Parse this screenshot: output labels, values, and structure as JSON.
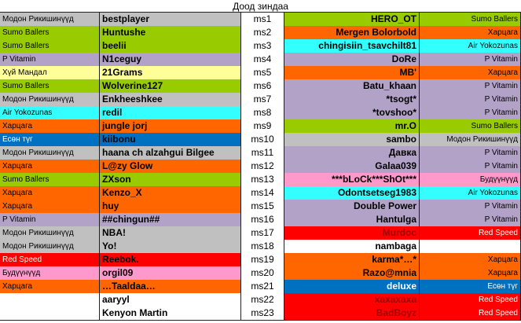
{
  "title": "Доод зиндаа",
  "colors": {
    "Модон Рикишинүүд": "#c0c0c0",
    "Sumo Ballers": "#99cc00",
    "P Vitamin": "#b3a2c7",
    "Хүй Мандал": "#ffff99",
    "Air Yokozunas": "#33ffff",
    "Харцага": "#ff6600",
    "Есөн түг": "#0070c0",
    "Red Speed": "#ff0000",
    "Будүүнүүд": "#ff99cc",
    "none": "#ffffff"
  },
  "rows": [
    {
      "lt": "Модон Рикишинүүд",
      "lp": "bestplayer",
      "ms": "ms1",
      "rp": "HERO_OT",
      "rt": "Sumo Ballers",
      "lpc": "#c0c0c0",
      "rpc": "#99cc00"
    },
    {
      "lt": "Sumo Ballers",
      "lp": "Huntushe",
      "ms": "ms2",
      "rp": "Mergen Bolorbold",
      "rt": "Харцага",
      "lpc": "#99cc00",
      "rpc": "#ff6600"
    },
    {
      "lt": "Sumo Ballers",
      "lp": "beelii",
      "ms": "ms3",
      "rp": "chingisiin_tsavchilt81",
      "rt": "Air Yokozunas",
      "lpc": "#99cc00",
      "rpc": "#33ffff"
    },
    {
      "lt": "P Vitamin",
      "lp": "N1ceguy",
      "ms": "ms4",
      "rp": "DoRe",
      "rt": "P Vitamin",
      "lpc": "#b3a2c7",
      "rpc": "#b3a2c7"
    },
    {
      "lt": "Хүй Мандал",
      "lp": "21Grams",
      "ms": "ms5",
      "rp": "MB'",
      "rt": "Харцага",
      "lpc": "#ffff99",
      "rpc": "#ff6600"
    },
    {
      "lt": "Sumo Ballers",
      "lp": "Wolverine127",
      "ms": "ms6",
      "rp": "Batu_khaan",
      "rt": "P Vitamin",
      "lpc": "#99cc00",
      "rpc": "#b3a2c7"
    },
    {
      "lt": "Модон Рикишинүүд",
      "lp": "Enkheeshkee",
      "ms": "ms7",
      "rp": "*tsogt*",
      "rt": "P Vitamin",
      "lpc": "#c0c0c0",
      "rpc": "#b3a2c7"
    },
    {
      "lt": "Air Yokozunas",
      "lp": "redil",
      "ms": "ms8",
      "rp": "*tovshoo*",
      "rt": "P Vitamin",
      "lpc": "#33ffff",
      "rpc": "#b3a2c7"
    },
    {
      "lt": "Харцага",
      "lp": "jungle jorj",
      "ms": "ms9",
      "rp": "mr.O",
      "rt": "Sumo Ballers",
      "lpc": "#ff6600",
      "rpc": "#99cc00"
    },
    {
      "lt": "Есөн түг",
      "lp": "kiibonu",
      "ms": "ms10",
      "rp": "sambo",
      "rt": "Модон Рикишинүүд",
      "lpc": "#0070c0",
      "rpc": "#c0c0c0"
    },
    {
      "lt": "Модон Рикишинүүд",
      "lp": "haana ch alzahgui Bilgee",
      "ms": "ms11",
      "rp": "Давка",
      "rt": "P Vitamin",
      "lpc": "#c0c0c0",
      "rpc": "#b3a2c7"
    },
    {
      "lt": "Харцага",
      "lp": "L@zy Glow",
      "ms": "ms12",
      "rp": "Galaa039",
      "rt": "P Vitamin",
      "lpc": "#ff6600",
      "rpc": "#b3a2c7"
    },
    {
      "lt": "Sumo Ballers",
      "lp": "ZXson",
      "ms": "ms13",
      "rp": "***bLoCk***ShOt***",
      "rt": "Будүүнүүд",
      "lpc": "#99cc00",
      "rpc": "#ff99cc"
    },
    {
      "lt": "Харцага",
      "lp": "Kenzo_X",
      "ms": "ms14",
      "rp": "Odontsetseg1983",
      "rt": "Air Yokozunas",
      "lpc": "#ff6600",
      "rpc": "#33ffff"
    },
    {
      "lt": "Харцага",
      "lp": "huy",
      "ms": "ms15",
      "rp": "Double Power",
      "rt": "P Vitamin",
      "lpc": "#ff6600",
      "rpc": "#b3a2c7"
    },
    {
      "lt": "P Vitamin",
      "lp": "##chingun##",
      "ms": "ms16",
      "rp": "Hantulga",
      "rt": "P Vitamin",
      "lpc": "#b3a2c7",
      "rpc": "#b3a2c7"
    },
    {
      "lt": "Модон Рикишинүүд",
      "lp": "NBA!",
      "ms": "ms17",
      "rp": "Murdoc",
      "rt": "Red Speed",
      "lpc": "#c0c0c0",
      "rpc": "#ff0000"
    },
    {
      "lt": "Модон Рикишинүүд",
      "lp": "Yo!",
      "ms": "ms18",
      "rp": "nambaga",
      "rt": "",
      "lpc": "#c0c0c0",
      "rpc": "#ffffff"
    },
    {
      "lt": "Red Speed",
      "lp": "Reebok.",
      "ms": "ms19",
      "rp": "karma*…*",
      "rt": "Харцага",
      "lpc": "#ff0000",
      "rpc": "#ff6600"
    },
    {
      "lt": "Будүүнүүд",
      "lp": "orgil09",
      "ms": "ms20",
      "rp": "Razo@mnia",
      "rt": "Харцага",
      "lpc": "#ff99cc",
      "rpc": "#ff6600"
    },
    {
      "lt": "Харцага",
      "lp": "…Taaldaa…",
      "ms": "ms21",
      "rp": "deluxe",
      "rt": "Есөн түг",
      "lpc": "#ff6600",
      "rpc": "#0070c0"
    },
    {
      "lt": "",
      "lp": "aaryyl",
      "ms": "ms22",
      "rp": "хахахаха",
      "rt": "Red Speed",
      "lpc": "#ffffff",
      "rpc": "#ff0000"
    },
    {
      "lt": "",
      "lp": "Kenyon Martin",
      "ms": "ms23",
      "rp": "BadBoyz",
      "rt": "Red Speed",
      "lpc": "#ffffff",
      "rpc": "#ff0000"
    }
  ]
}
